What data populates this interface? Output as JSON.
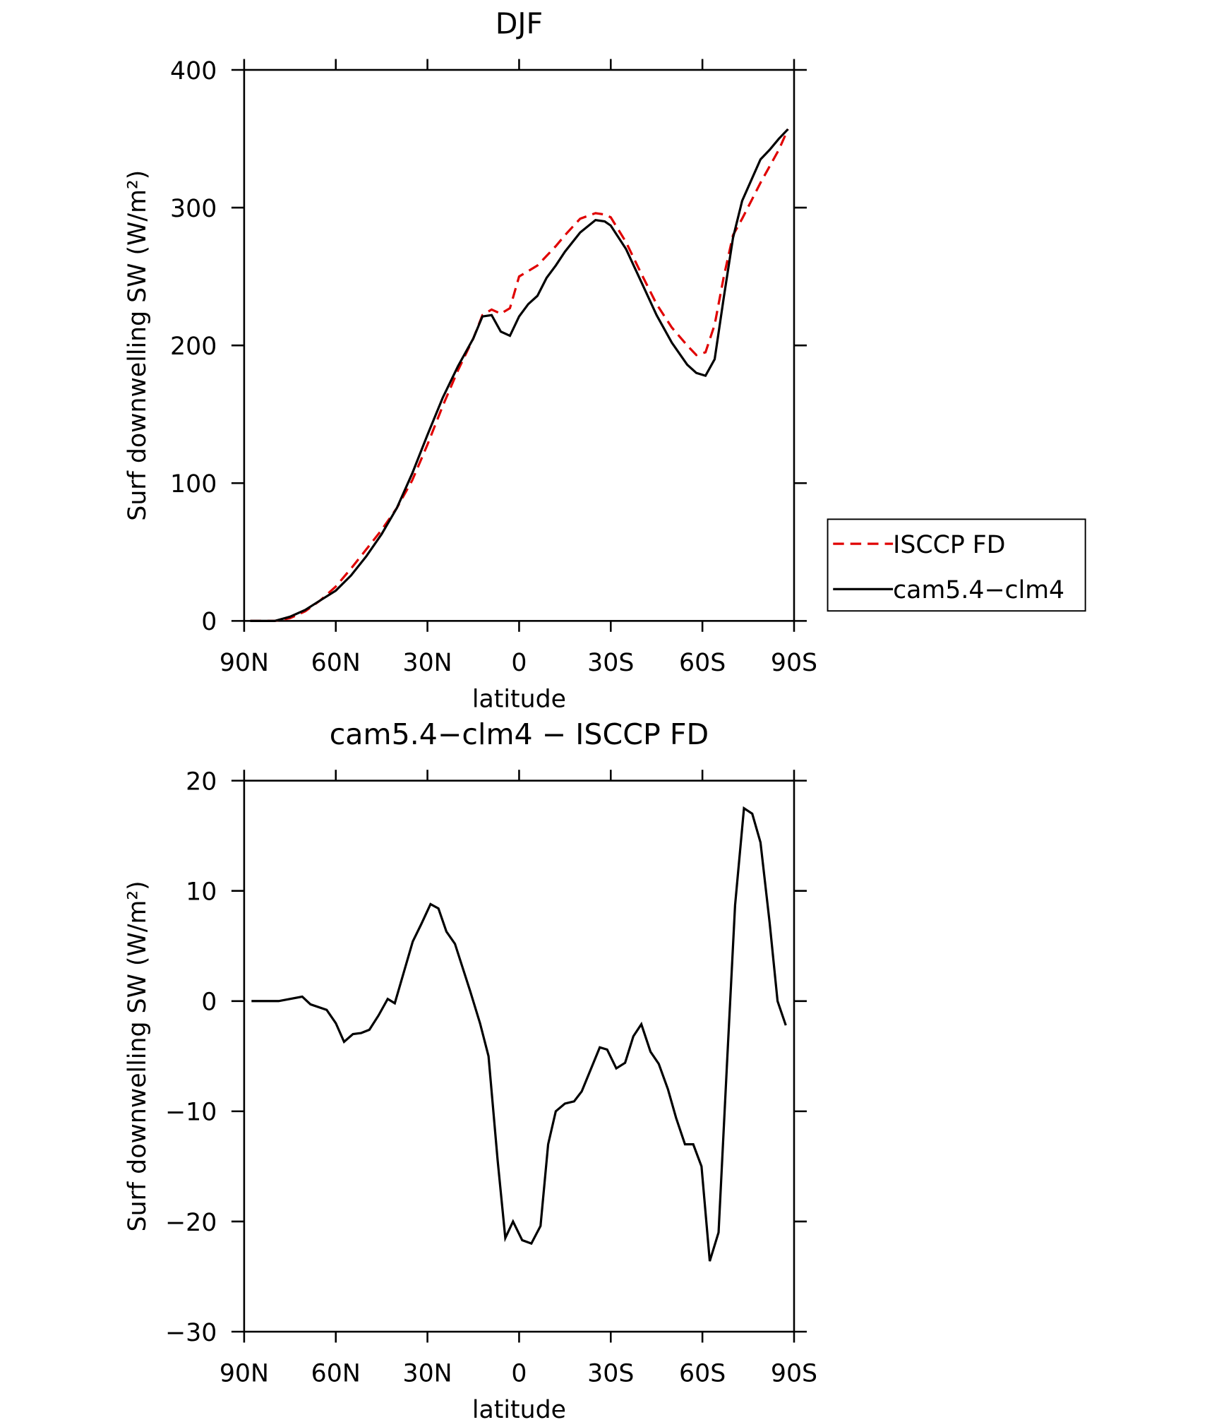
{
  "chart_data": [
    {
      "type": "line",
      "title": "DJF",
      "xlabel": "latitude",
      "ylabel": "Surf downwelling SW (W/m²)",
      "xlim": [
        90,
        -90
      ],
      "xticks": [
        {
          "value": 90,
          "label": "90N"
        },
        {
          "value": 60,
          "label": "60N"
        },
        {
          "value": 30,
          "label": "30N"
        },
        0,
        {
          "value": -30,
          "label": "30S"
        },
        {
          "value": -60,
          "label": "60S"
        },
        {
          "value": -90,
          "label": "90S"
        }
      ],
      "ylim": [
        0,
        400
      ],
      "yticks": [
        0,
        100,
        200,
        300,
        400
      ],
      "legend": "right",
      "x": [
        88,
        85,
        80,
        75,
        70,
        65,
        60,
        55,
        50,
        45,
        40,
        35,
        30,
        25,
        20,
        15,
        12,
        9,
        6,
        3,
        0,
        -3,
        -6,
        -9,
        -12,
        -15,
        -20,
        -25,
        -28,
        -30,
        -35,
        -40,
        -45,
        -50,
        -55,
        -58,
        -61,
        -64,
        -67,
        -70,
        -73,
        -76,
        -79,
        -82,
        -85,
        -88
      ],
      "series": [
        {
          "name": "ISCCP FD",
          "color": "#e00000",
          "dash": true,
          "values": [
            0,
            0,
            0,
            2,
            7,
            15,
            25,
            38,
            52,
            66,
            82,
            102,
            128,
            156,
            182,
            205,
            222,
            226,
            223,
            227,
            250,
            254,
            258,
            265,
            272,
            280,
            292,
            296,
            295,
            293,
            275,
            252,
            230,
            213,
            200,
            193,
            195,
            215,
            250,
            280,
            292,
            305,
            318,
            330,
            342,
            357
          ]
        },
        {
          "name": "cam5.4−clm4",
          "color": "#000000",
          "dash": false,
          "values": [
            0,
            0,
            0,
            3,
            8,
            15,
            22,
            33,
            47,
            63,
            82,
            107,
            135,
            162,
            185,
            205,
            221,
            222,
            210,
            207,
            221,
            230,
            236,
            249,
            258,
            268,
            282,
            291,
            290,
            287,
            270,
            246,
            222,
            202,
            186,
            180,
            178,
            190,
            235,
            278,
            305,
            320,
            335,
            342,
            350,
            357
          ]
        }
      ]
    },
    {
      "type": "line",
      "title": "cam5.4−clm4 − ISCCP FD",
      "xlabel": "latitude",
      "ylabel": "Surf downwelling SW (W/m²)",
      "xlim": [
        90,
        -90
      ],
      "xticks": [
        {
          "value": 90,
          "label": "90N"
        },
        {
          "value": 60,
          "label": "60N"
        },
        {
          "value": 30,
          "label": "30N"
        },
        0,
        {
          "value": -30,
          "label": "30S"
        },
        {
          "value": -60,
          "label": "60S"
        },
        {
          "value": -90,
          "label": "90S"
        }
      ],
      "ylim": [
        -30,
        20
      ],
      "yticks": [
        {
          "value": -30,
          "label": "−30"
        },
        {
          "value": -20,
          "label": "−20"
        },
        {
          "value": -10,
          "label": "−10"
        },
        0,
        10,
        20
      ],
      "x": [
        87.6,
        78.7,
        71,
        68.3,
        63,
        60,
        57.3,
        54.4,
        51.7,
        49,
        46,
        43,
        40.7,
        34.8,
        32,
        29,
        26.4,
        23.8,
        21,
        16,
        12.8,
        10,
        7,
        4.5,
        2,
        -1,
        -4,
        -7,
        -9.5,
        -12,
        -15,
        -18,
        -20.5,
        -26.4,
        -28.8,
        -31.8,
        -34.7,
        -37.4,
        -40,
        -43,
        -45.7,
        -48.7,
        -51.4,
        -54.3,
        -57,
        -59.7,
        -62.4,
        -65.3,
        -68,
        -70.7,
        -73.6,
        -76.3,
        -79,
        -82,
        -84.6,
        -87.3
      ],
      "series": [
        {
          "name": null,
          "color": "#000000",
          "dash": false,
          "values": [
            0,
            0,
            0.4,
            -0.3,
            -0.8,
            -2,
            -3.7,
            -3,
            -2.9,
            -2.6,
            -1.3,
            0.2,
            -0.2,
            5.4,
            7,
            8.8,
            8.4,
            6.3,
            5.2,
            0.9,
            -2,
            -5,
            -14.5,
            -21.5,
            -20,
            -21.7,
            -22,
            -20.4,
            -13,
            -10,
            -9.3,
            -9.1,
            -8.2,
            -4.2,
            -4.4,
            -6.1,
            -5.6,
            -3.2,
            -2.1,
            -4.6,
            -5.7,
            -8,
            -10.6,
            -13,
            -13,
            -15,
            -23.6,
            -21,
            -6,
            8.7,
            17.5,
            17,
            14.4,
            7.1,
            0,
            -2.2
          ]
        }
      ]
    }
  ]
}
